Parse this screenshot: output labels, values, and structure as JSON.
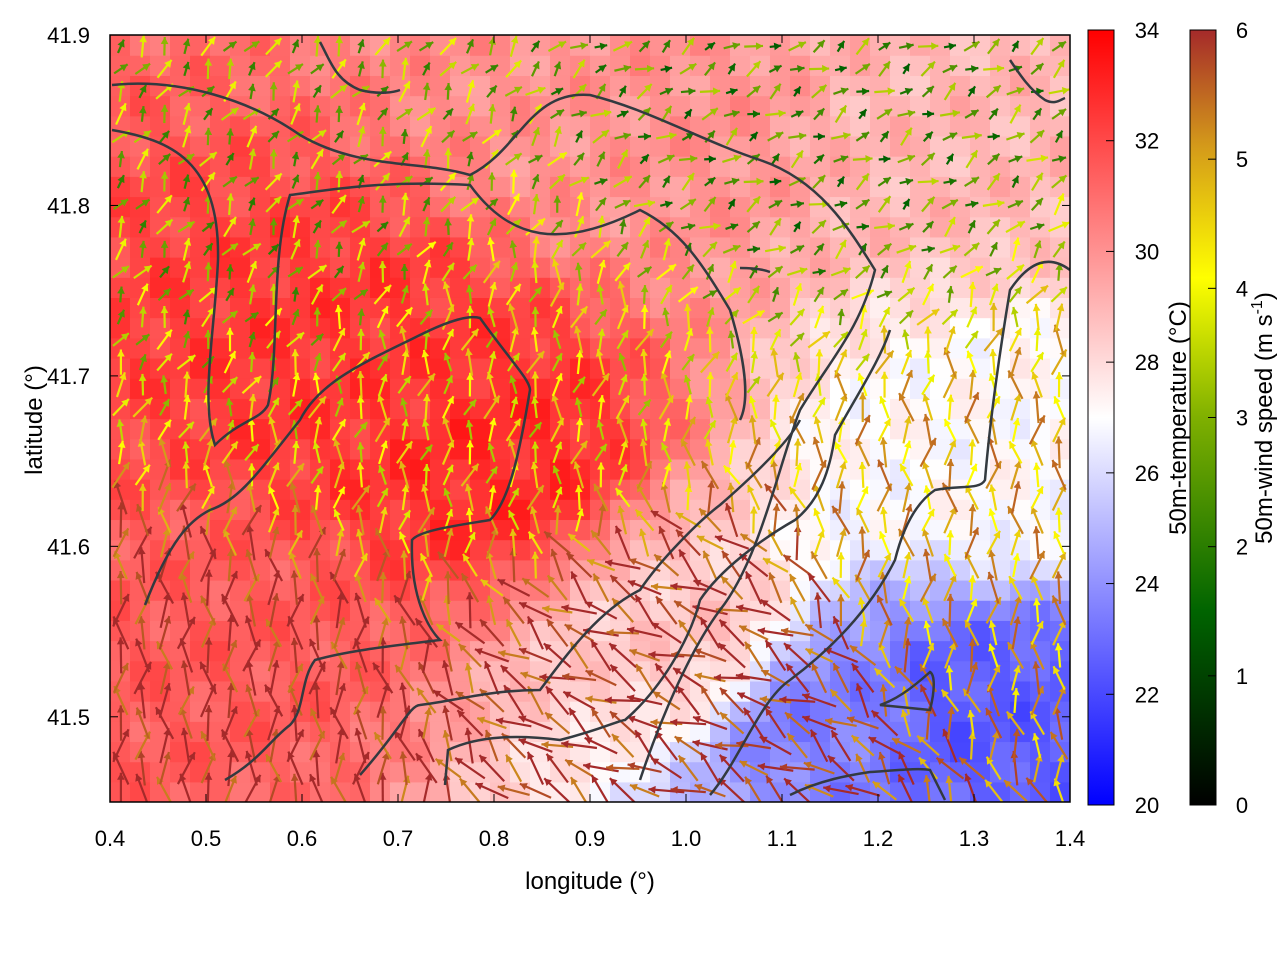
{
  "chart_data": {
    "type": "heatmap",
    "xlabel": "longitude (°)",
    "ylabel": "latitude (°)",
    "xlim": [
      0.4,
      1.4
    ],
    "ylim": [
      41.45,
      41.9
    ],
    "x_ticks": [
      "0.4",
      "0.5",
      "0.6",
      "0.7",
      "0.8",
      "0.9",
      "1.0",
      "1.1",
      "1.2",
      "1.3",
      "1.4"
    ],
    "y_ticks": [
      "41.5",
      "41.6",
      "41.7",
      "41.8",
      "41.9"
    ],
    "temperature_colorbar": {
      "label": "50m-temperature (°C)",
      "range": [
        20,
        34
      ],
      "ticks": [
        "20",
        "22",
        "24",
        "26",
        "28",
        "30",
        "32",
        "34"
      ],
      "colors": [
        "#0000ff",
        "#ffffff",
        "#ff0000"
      ]
    },
    "wind_colorbar": {
      "label": "50m-wind speed (m s",
      "label_sup": "-1",
      "label_end": ")",
      "range": [
        0,
        6
      ],
      "ticks": [
        "0",
        "1",
        "2",
        "3",
        "4",
        "5",
        "6"
      ],
      "colors": [
        "#000000",
        "#006400",
        "#7fb000",
        "#ffff00",
        "#d49a1a",
        "#a52a2a"
      ]
    },
    "field": {
      "description": "Gridded 50m temperature (heatmap) with wind vectors coloured by speed; coastline/terrain contours overlaid",
      "temperature_regions": [
        {
          "lon": 0.65,
          "lat": 41.7,
          "temp": 32.5
        },
        {
          "lon": 0.8,
          "lat": 41.65,
          "temp": 32.8
        },
        {
          "lon": 0.5,
          "lat": 41.55,
          "temp": 31.5
        },
        {
          "lon": 0.95,
          "lat": 41.85,
          "temp": 30.0
        },
        {
          "lon": 1.3,
          "lat": 41.85,
          "temp": 29.0
        },
        {
          "lon": 1.3,
          "lat": 41.65,
          "temp": 27.0
        },
        {
          "lon": 1.3,
          "lat": 41.5,
          "temp": 22.5
        },
        {
          "lon": 1.15,
          "lat": 41.5,
          "temp": 23.5
        },
        {
          "lon": 1.0,
          "lat": 41.55,
          "temp": 28.5
        }
      ],
      "wind_regions": [
        {
          "lon": 0.6,
          "lat": 41.8,
          "speed": 2.5,
          "dir_deg": 60
        },
        {
          "lon": 0.8,
          "lat": 41.7,
          "speed": 3.5,
          "dir_deg": 80
        },
        {
          "lon": 1.1,
          "lat": 41.85,
          "speed": 2.0,
          "dir_deg": 30
        },
        {
          "lon": 0.5,
          "lat": 41.5,
          "speed": 6.0,
          "dir_deg": 90
        },
        {
          "lon": 1.0,
          "lat": 41.52,
          "speed": 6.0,
          "dir_deg": 150
        },
        {
          "lon": 1.3,
          "lat": 41.6,
          "speed": 4.5,
          "dir_deg": 90
        }
      ]
    }
  }
}
